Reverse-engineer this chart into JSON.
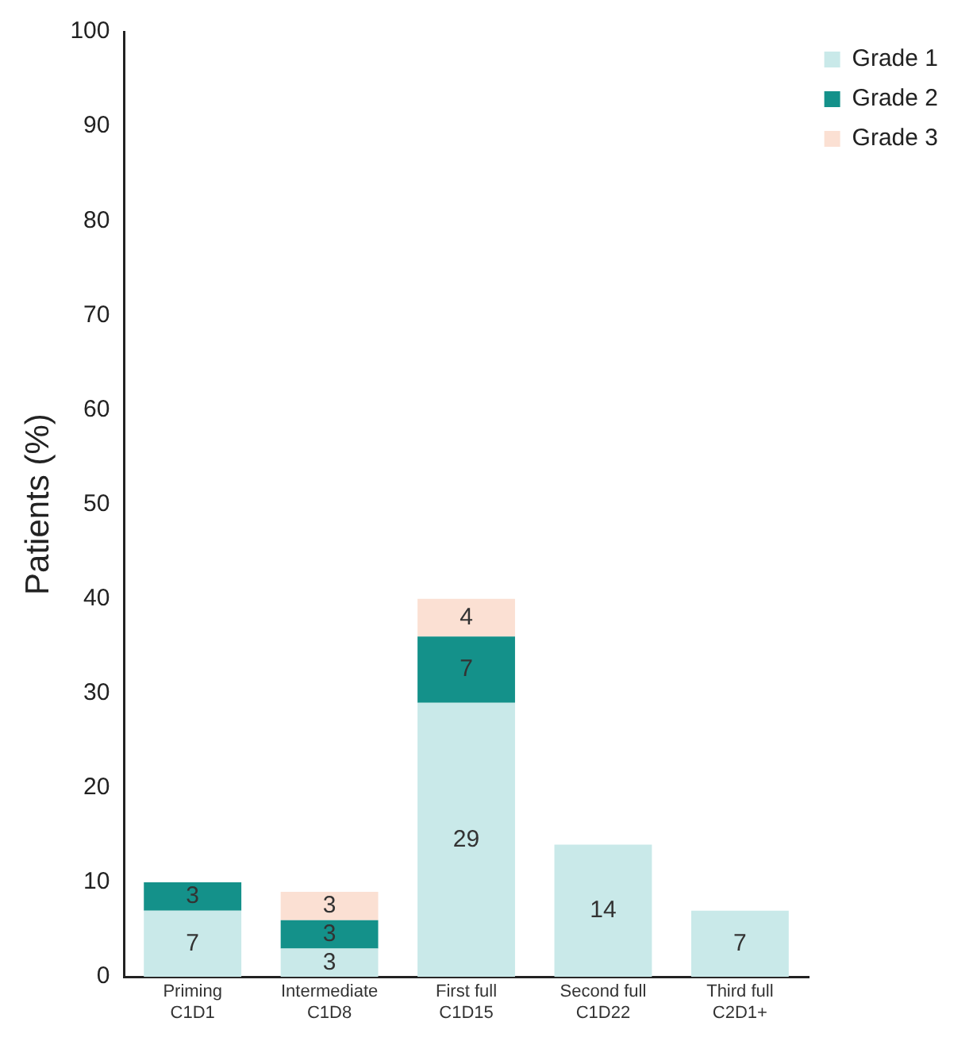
{
  "chart_data": {
    "type": "bar",
    "stacked": true,
    "ylabel": "Patients (%)",
    "categories": [
      "Priming\nC1D1",
      "Intermediate\nC1D8",
      "First full\nC1D15",
      "Second full\nC1D22",
      "Third full\nC2D1+"
    ],
    "series": [
      {
        "name": "Grade 1",
        "color": "#c9e9e9",
        "values": [
          7,
          3,
          29,
          14,
          7
        ]
      },
      {
        "name": "Grade 2",
        "color": "#14918a",
        "values": [
          3,
          3,
          7,
          null,
          null
        ]
      },
      {
        "name": "Grade 3",
        "color": "#fbe0d3",
        "values": [
          null,
          3,
          4,
          null,
          null
        ]
      }
    ],
    "ylim": [
      0,
      100
    ],
    "yticks": [
      0,
      10,
      20,
      30,
      40,
      50,
      60,
      70,
      80,
      90,
      100
    ],
    "grid": false,
    "legend": "top right",
    "data_labels": true
  }
}
